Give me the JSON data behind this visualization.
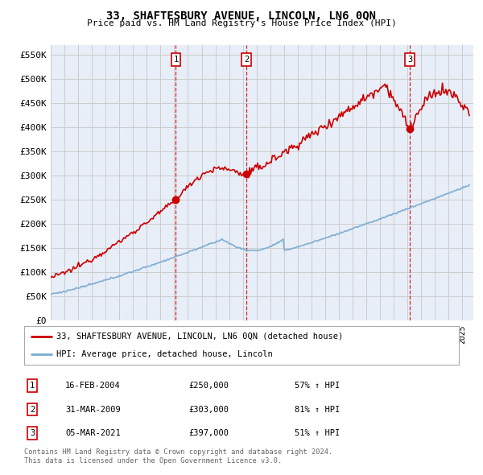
{
  "title": "33, SHAFTESBURY AVENUE, LINCOLN, LN6 0QN",
  "subtitle": "Price paid vs. HM Land Registry's House Price Index (HPI)",
  "ylabel_ticks": [
    "£0",
    "£50K",
    "£100K",
    "£150K",
    "£200K",
    "£250K",
    "£300K",
    "£350K",
    "£400K",
    "£450K",
    "£500K",
    "£550K"
  ],
  "ytick_values": [
    0,
    50000,
    100000,
    150000,
    200000,
    250000,
    300000,
    350000,
    400000,
    450000,
    500000,
    550000
  ],
  "ylim": [
    0,
    570000
  ],
  "xlim_start": 1995.0,
  "xlim_end": 2025.8,
  "sales": [
    {
      "num": 1,
      "date": "16-FEB-2004",
      "price": 250000,
      "year": 2004.12,
      "hpi_pct": "57% ↑ HPI"
    },
    {
      "num": 2,
      "date": "31-MAR-2009",
      "price": 303000,
      "year": 2009.25,
      "hpi_pct": "81% ↑ HPI"
    },
    {
      "num": 3,
      "date": "05-MAR-2021",
      "price": 397000,
      "year": 2021.17,
      "hpi_pct": "51% ↑ HPI"
    }
  ],
  "legend_line1": "33, SHAFTESBURY AVENUE, LINCOLN, LN6 0QN (detached house)",
  "legend_line2": "HPI: Average price, detached house, Lincoln",
  "footer1": "Contains HM Land Registry data © Crown copyright and database right 2024.",
  "footer2": "This data is licensed under the Open Government Licence v3.0.",
  "red_color": "#cc0000",
  "blue_color": "#7aabcf",
  "dashed_color": "#cc0000",
  "bg_color": "#ffffff",
  "grid_color": "#cccccc",
  "plot_bg": "#e8eef8"
}
